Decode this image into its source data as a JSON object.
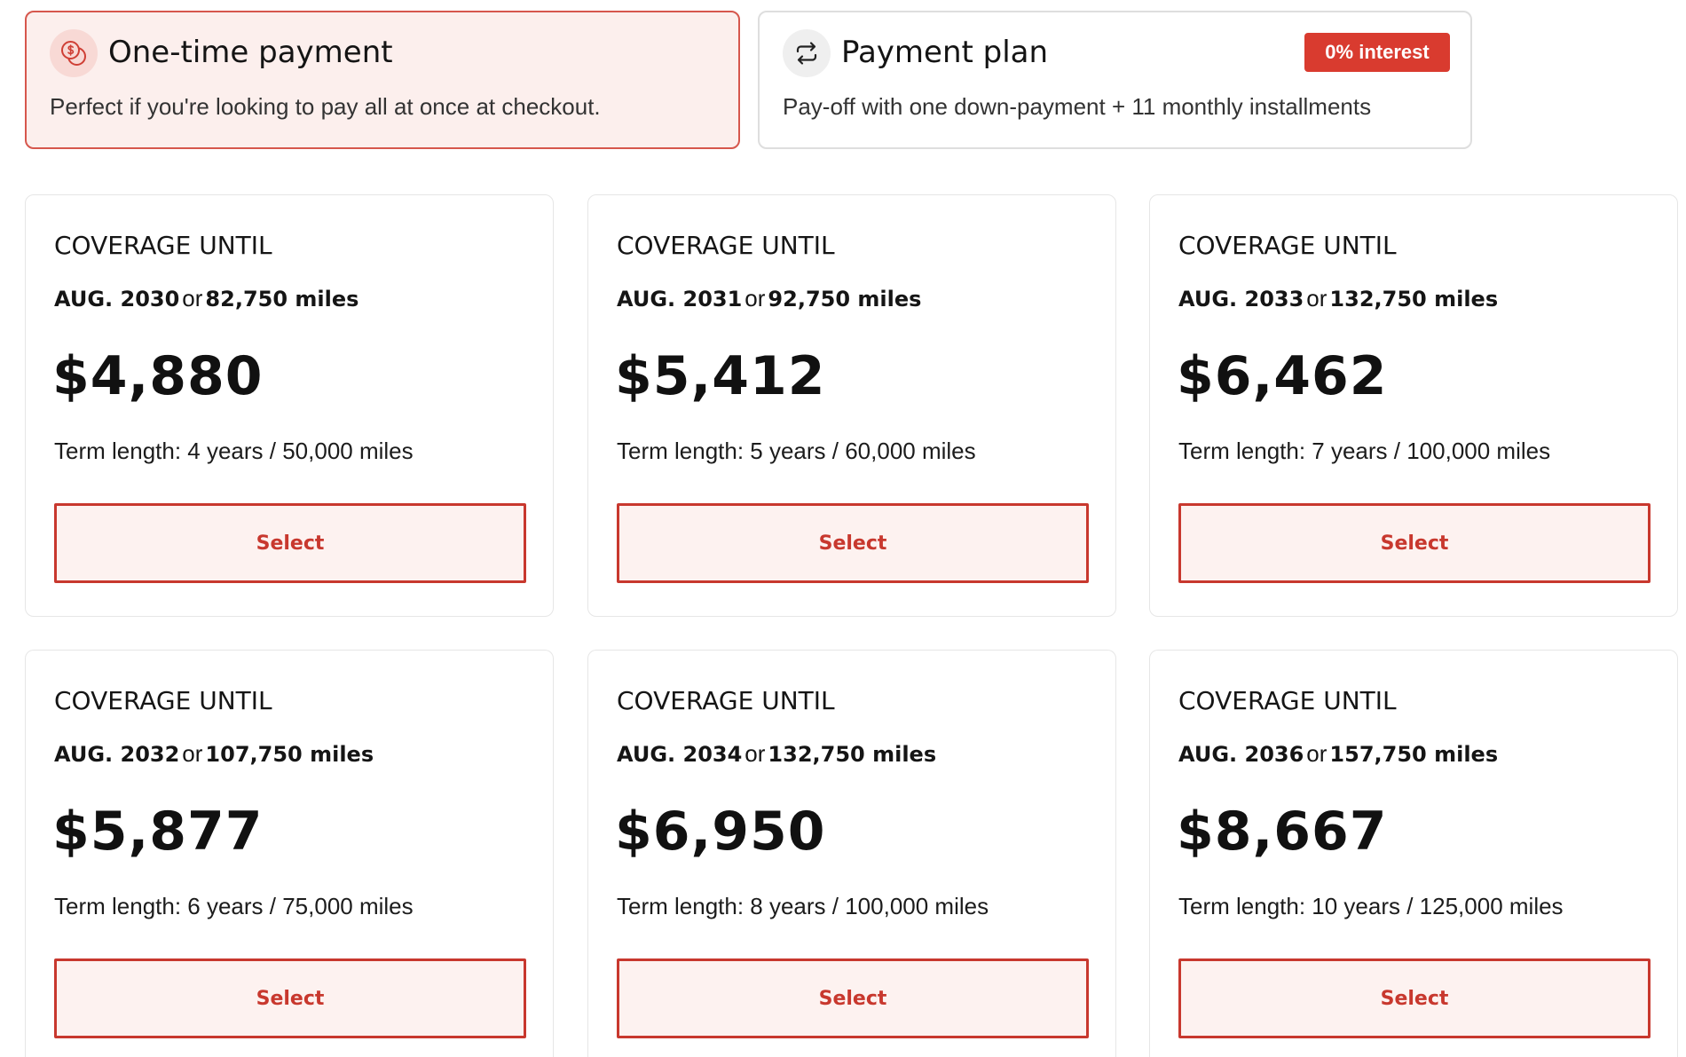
{
  "payment_options": {
    "one_time": {
      "icon": "dollar-coin-icon",
      "title": "One-time payment",
      "description": "Perfect if you're looking to pay all at once at checkout.",
      "selected": true
    },
    "plan": {
      "icon": "repeat-arrows-icon",
      "title": "Payment plan",
      "badge": "0% interest",
      "description": "Pay-off with one down-payment + 11 monthly installments",
      "selected": false
    }
  },
  "plans": [
    {
      "coverage_label": "COVERAGE UNTIL",
      "date": "AUG. 2030",
      "connector": "or",
      "miles": "82,750 miles",
      "price": "$4,880",
      "term": "Term length: 4 years / 50,000 miles",
      "button": "Select"
    },
    {
      "coverage_label": "COVERAGE UNTIL",
      "date": "AUG. 2031",
      "connector": "or",
      "miles": "92,750 miles",
      "price": "$5,412",
      "term": "Term length: 5 years / 60,000 miles",
      "button": "Select"
    },
    {
      "coverage_label": "COVERAGE UNTIL",
      "date": "AUG. 2033",
      "connector": "or",
      "miles": "132,750 miles",
      "price": "$6,462",
      "term": "Term length: 7 years / 100,000 miles",
      "button": "Select"
    },
    {
      "coverage_label": "COVERAGE UNTIL",
      "date": "AUG. 2032",
      "connector": "or",
      "miles": "107,750 miles",
      "price": "$5,877",
      "term": "Term length: 6 years / 75,000 miles",
      "button": "Select"
    },
    {
      "coverage_label": "COVERAGE UNTIL",
      "date": "AUG. 2034",
      "connector": "or",
      "miles": "132,750 miles",
      "price": "$6,950",
      "term": "Term length: 8 years / 100,000 miles",
      "button": "Select"
    },
    {
      "coverage_label": "COVERAGE UNTIL",
      "date": "AUG. 2036",
      "connector": "or",
      "miles": "157,750 miles",
      "price": "$8,667",
      "term": "Term length: 10 years / 125,000 miles",
      "button": "Select"
    }
  ],
  "colors": {
    "accent": "#c8382e",
    "badge": "#d93b2f",
    "selected_card_bg": "#fcefed",
    "button_bg": "#fdf2f0"
  }
}
